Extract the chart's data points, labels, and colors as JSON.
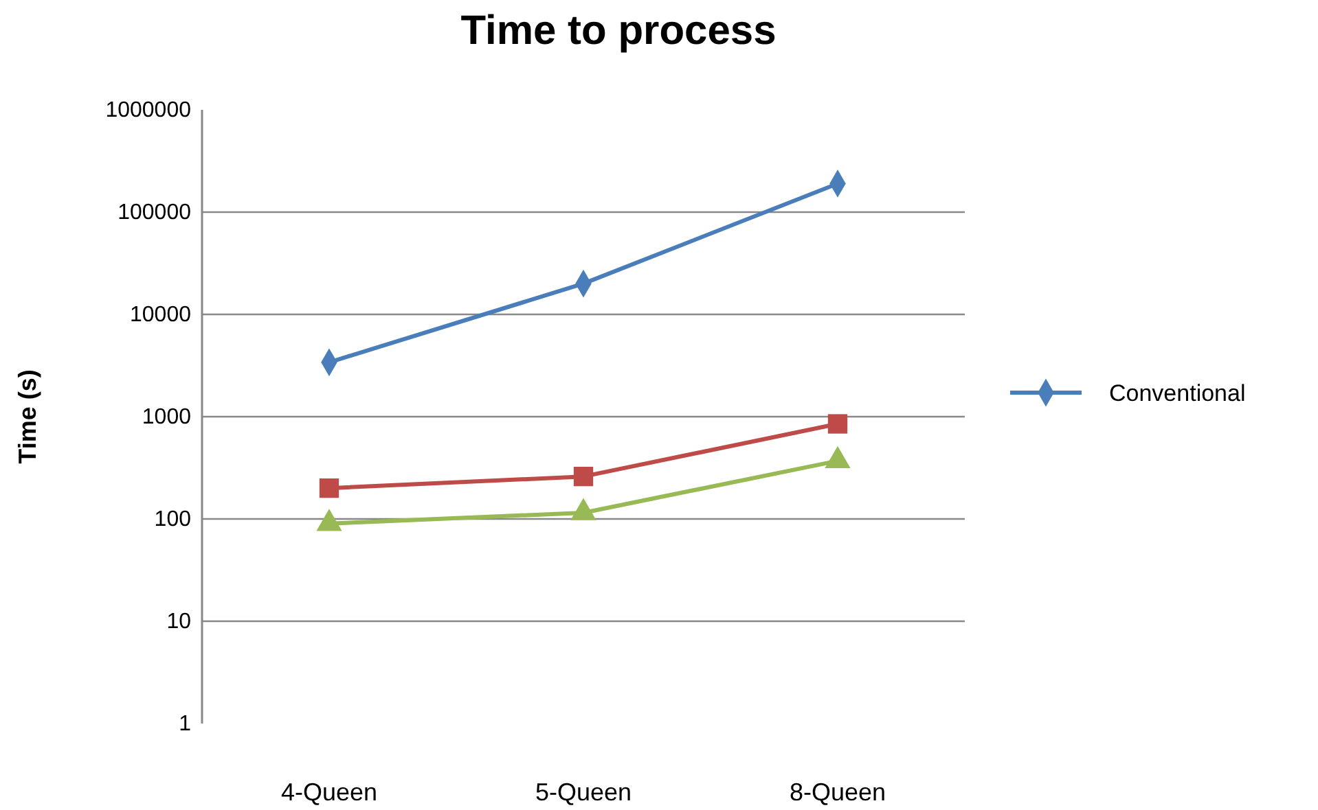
{
  "chart_data": {
    "type": "line",
    "title": "Time to process",
    "ylabel": "Time (s)",
    "categories": [
      "4-Queen",
      "5-Queen",
      "8-Queen"
    ],
    "series": [
      {
        "name": "Conventional",
        "color": "#4a7ebb",
        "values": [
          3400,
          20000,
          190000
        ],
        "marker": "diamond"
      },
      {
        "color": "#be4b48",
        "values": [
          200,
          260,
          850
        ],
        "marker": "square"
      },
      {
        "color": "#98b954",
        "values": [
          90,
          115,
          370
        ],
        "marker": "triangle"
      }
    ],
    "log": true,
    "ylim": [
      1,
      1000000
    ],
    "yticks": [
      1,
      10,
      100,
      1000,
      10000,
      100000,
      1000000
    ],
    "grid": "y",
    "legend": "right"
  }
}
